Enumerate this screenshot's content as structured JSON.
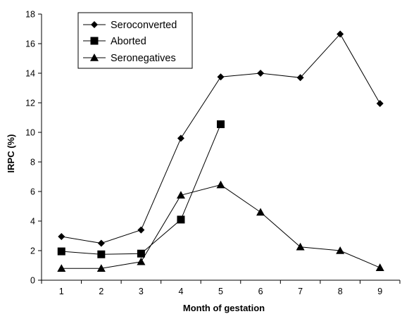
{
  "chart_data": {
    "type": "line",
    "title": "",
    "xlabel": "Month of gestation",
    "ylabel": "IRPC (%)",
    "x": [
      1,
      2,
      3,
      4,
      5,
      6,
      7,
      8,
      9
    ],
    "x_tick_labels": [
      "1",
      "2",
      "3",
      "4",
      "5",
      "6",
      "7",
      "8",
      "9"
    ],
    "y_tick_labels": [
      "0",
      "2",
      "4",
      "6",
      "8",
      "10",
      "12",
      "14",
      "16",
      "18"
    ],
    "ylim": [
      0,
      18
    ],
    "xlim": [
      0.5,
      9.5
    ],
    "grid": false,
    "legend_position": "top-left",
    "line_color": "#000000",
    "series": [
      {
        "name": "Seroconverted",
        "marker": "diamond",
        "x": [
          1,
          2,
          3,
          4,
          5,
          6,
          7,
          8,
          9
        ],
        "values": [
          2.95,
          2.5,
          3.4,
          9.6,
          13.75,
          14.0,
          13.7,
          16.65,
          11.95
        ]
      },
      {
        "name": "Aborted",
        "marker": "square",
        "x": [
          1,
          2,
          3,
          4,
          5
        ],
        "values": [
          1.95,
          1.75,
          1.8,
          4.1,
          10.55
        ]
      },
      {
        "name": "Seronegatives",
        "marker": "triangle",
        "x": [
          1,
          2,
          3,
          4,
          5,
          6,
          7,
          8,
          9
        ],
        "values": [
          0.8,
          0.8,
          1.25,
          5.75,
          6.45,
          4.6,
          2.25,
          2.0,
          0.85
        ]
      }
    ]
  }
}
